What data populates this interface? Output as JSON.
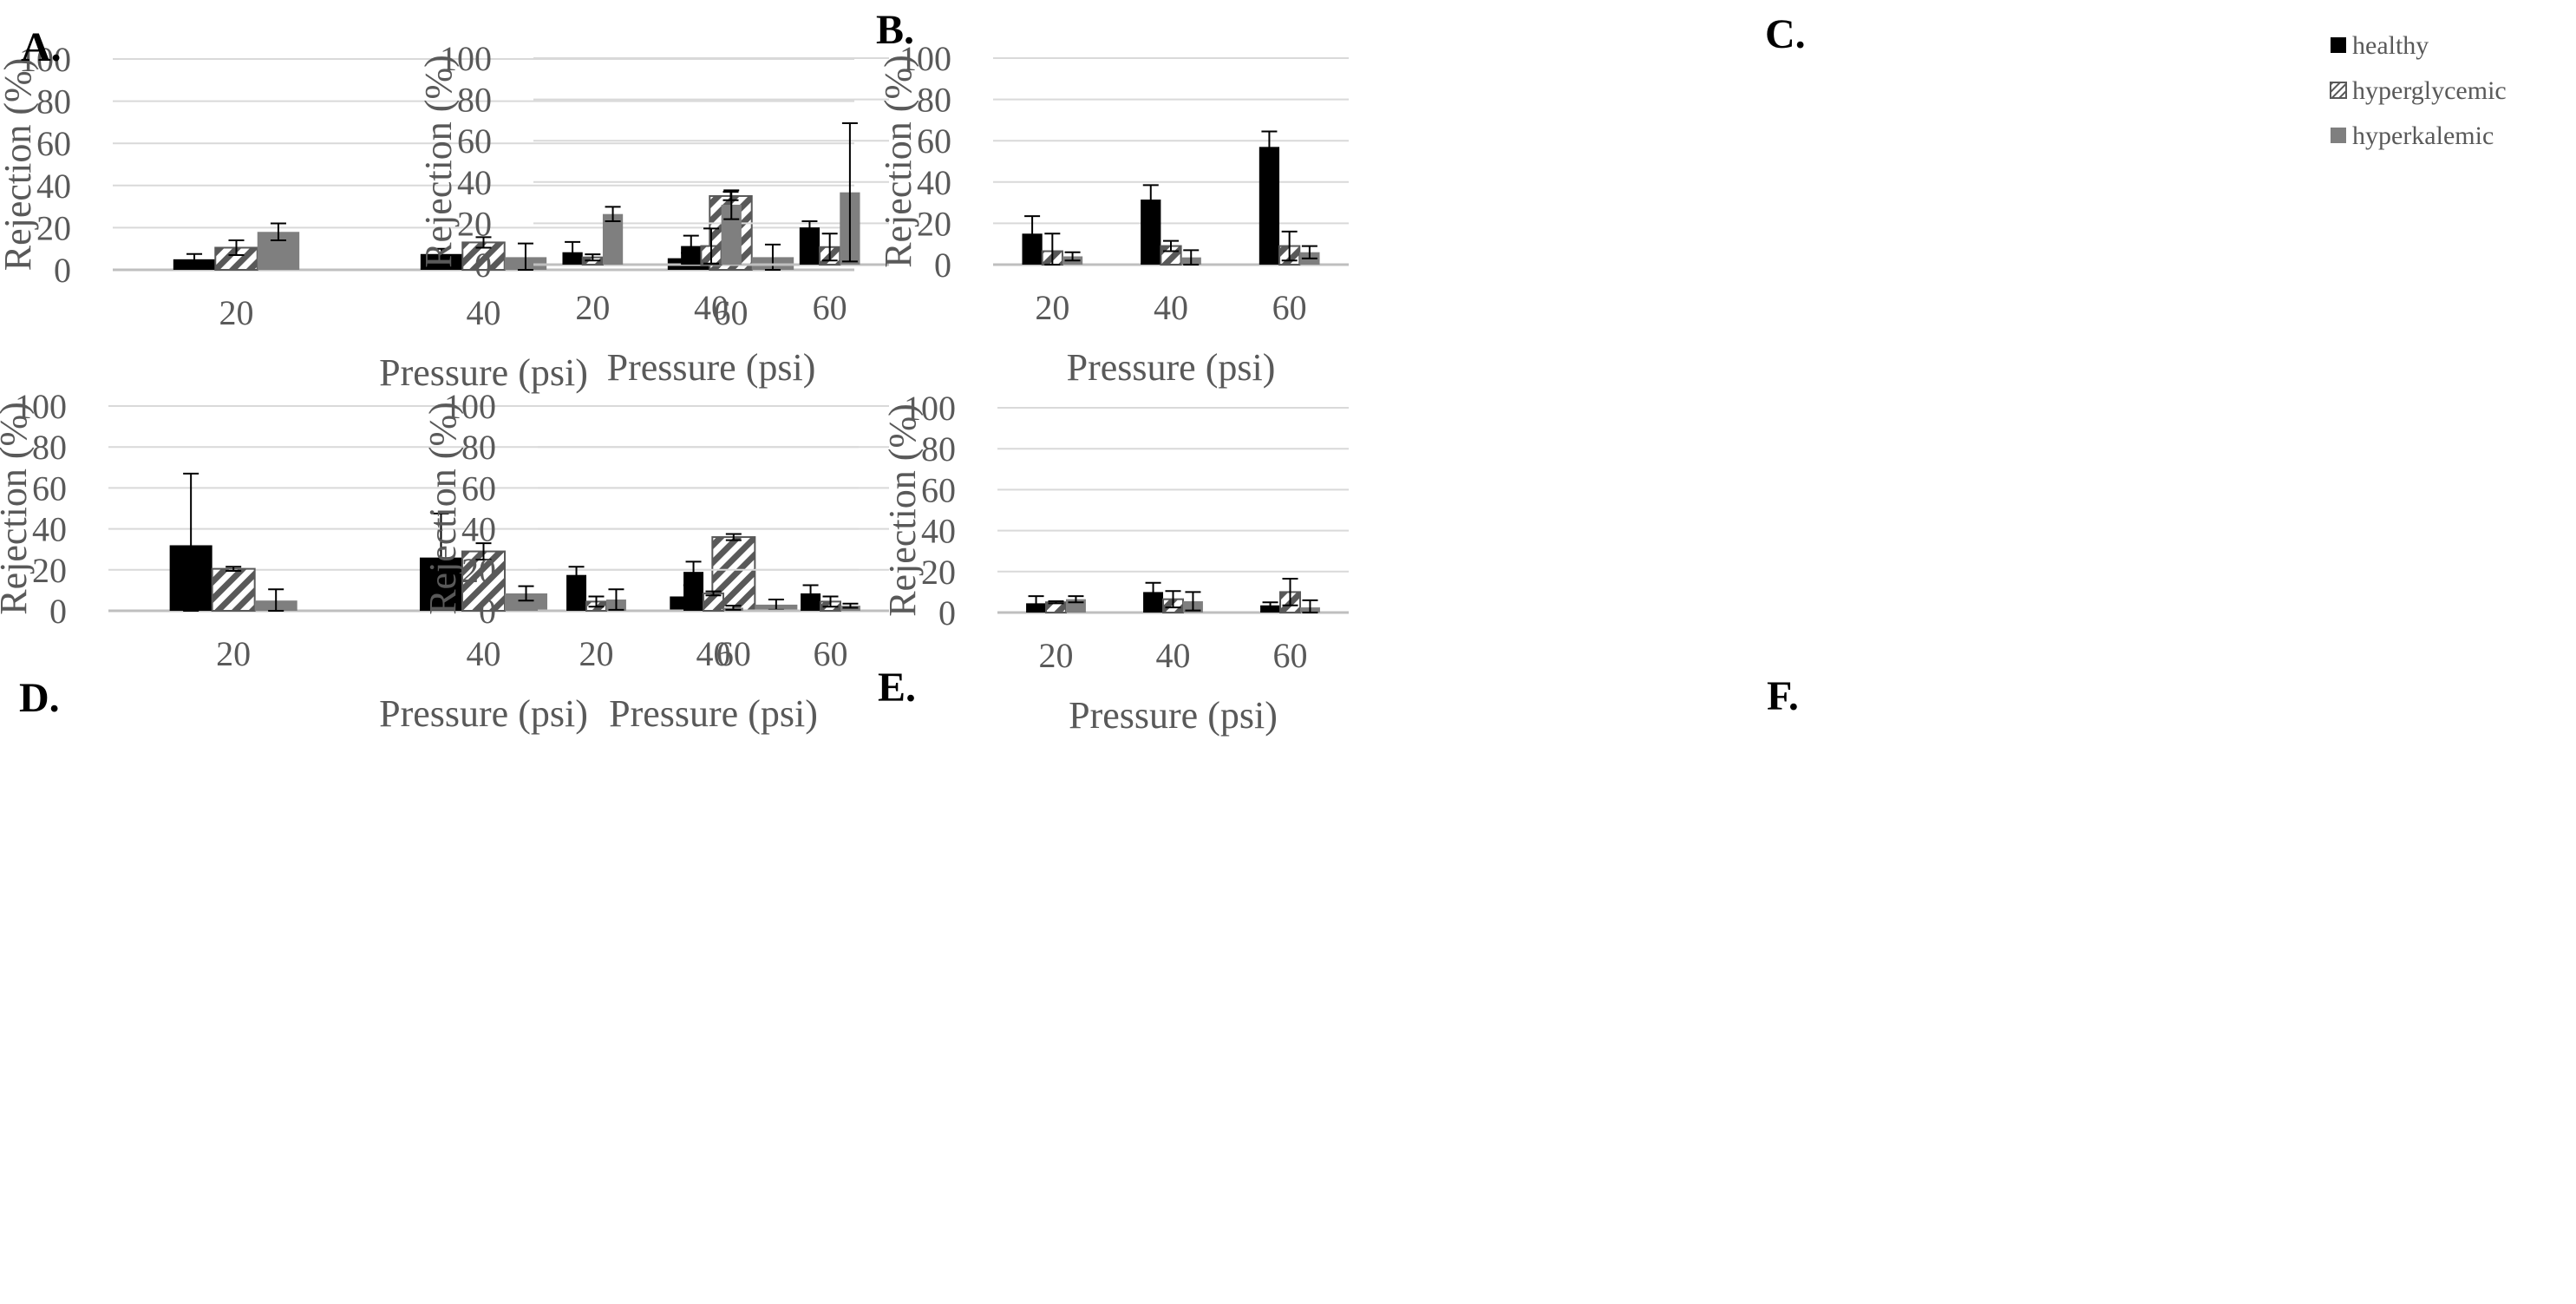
{
  "colors": {
    "healthy": "#000000",
    "hyperglycemic_stroke": "#595959",
    "hyperkalemic": "#7f7f7f",
    "gridline": "#d9d9d9",
    "axis": "#bfbfbf",
    "text": "#595959"
  },
  "legend": [
    "healthy",
    "hyperglycemic",
    "hyperkalemic"
  ],
  "chart_data": [
    {
      "panel": "A.",
      "type": "bar",
      "categories": [
        "20",
        "40",
        "60"
      ],
      "xlabel": "Pressure (psi)",
      "ylabel": "Rejection (%)",
      "ylim": [
        0,
        100
      ],
      "yticks": [
        "0",
        "20",
        "40",
        "60",
        "80",
        "100"
      ],
      "grid": true,
      "series": [
        {
          "name": "healthy",
          "values": [
            5,
            7.5,
            5.5
          ],
          "errors": [
            2.5,
            2.5,
            2.5
          ]
        },
        {
          "name": "hyperglycemic",
          "values": [
            10.5,
            13,
            35
          ],
          "errors": [
            3.5,
            2.5,
            2
          ]
        },
        {
          "name": "hyperkalemic",
          "values": [
            18,
            6,
            6
          ],
          "errors": [
            4,
            6.5,
            6
          ]
        }
      ]
    },
    {
      "panel": "B.",
      "type": "bar",
      "categories": [
        "20",
        "40",
        "60"
      ],
      "xlabel": "Pressure (psi)",
      "ylabel": "Rejection (%)",
      "ylim": [
        0,
        100
      ],
      "yticks": [
        "0",
        "20",
        "40",
        "60",
        "80",
        "100"
      ],
      "grid": true,
      "series": [
        {
          "name": "healthy",
          "values": [
            6,
            9,
            18
          ],
          "errors": [
            5,
            5,
            3
          ]
        },
        {
          "name": "hyperglycemic",
          "values": [
            3.5,
            9,
            8.5
          ],
          "errors": [
            1.5,
            8.5,
            6.5
          ]
        },
        {
          "name": "hyperkalemic",
          "values": [
            24.5,
            29,
            35
          ],
          "errors": [
            3.5,
            7,
            33.5
          ]
        }
      ]
    },
    {
      "panel": "C.",
      "type": "bar",
      "categories": [
        "20",
        "40",
        "60"
      ],
      "xlabel": "Pressure (psi)",
      "ylabel": "Rejection (%)",
      "ylim": [
        0,
        100
      ],
      "yticks": [
        "0",
        "20",
        "40",
        "60",
        "80",
        "100"
      ],
      "grid": true,
      "legend_position": "top-right",
      "series": [
        {
          "name": "healthy",
          "values": [
            15,
            31.5,
            57
          ],
          "errors": [
            8.5,
            7,
            7.5
          ]
        },
        {
          "name": "hyperglycemic",
          "values": [
            6.5,
            9,
            9
          ],
          "errors": [
            8.5,
            2.5,
            7
          ]
        },
        {
          "name": "hyperkalemic",
          "values": [
            4,
            3.5,
            6
          ],
          "errors": [
            2,
            3.5,
            3
          ]
        }
      ]
    },
    {
      "panel": "D.",
      "type": "bar",
      "categories": [
        "20",
        "40",
        "60"
      ],
      "xlabel": "Pressure (psi)",
      "ylabel": "Rejection (%)",
      "ylim": [
        0,
        100
      ],
      "yticks": [
        "0",
        "20",
        "40",
        "60",
        "80",
        "100"
      ],
      "grid": true,
      "series": [
        {
          "name": "healthy",
          "values": [
            32,
            26,
            7
          ],
          "errors": [
            35,
            21.5,
            5.5
          ]
        },
        {
          "name": "hyperglycemic",
          "values": [
            20.5,
            29,
            36
          ],
          "errors": [
            1,
            4,
            1.5
          ]
        },
        {
          "name": "hyperkalemic",
          "values": [
            5,
            8.5,
            3
          ],
          "errors": [
            5.5,
            3.5,
            2.5
          ]
        }
      ]
    },
    {
      "panel": "E.",
      "type": "bar",
      "categories": [
        "20",
        "40",
        "60"
      ],
      "xlabel": "Pressure (psi)",
      "ylabel": "Rejection (%)",
      "ylim": [
        0,
        100
      ],
      "yticks": [
        "0",
        "20",
        "40",
        "60",
        "80",
        "100"
      ],
      "grid": true,
      "series": [
        {
          "name": "healthy",
          "values": [
            17.5,
            19,
            8.5
          ],
          "errors": [
            4,
            5,
            4
          ]
        },
        {
          "name": "hyperglycemic",
          "values": [
            4.5,
            8.5,
            4.5
          ],
          "errors": [
            2.5,
            1,
            2.5
          ]
        },
        {
          "name": "hyperkalemic",
          "values": [
            5.5,
            1.5,
            2.5
          ],
          "errors": [
            5,
            1,
            1
          ]
        }
      ]
    },
    {
      "panel": "F.",
      "type": "bar",
      "categories": [
        "20",
        "40",
        "60"
      ],
      "xlabel": "Pressure (psi)",
      "ylabel": "Rejection (%)",
      "ylim": [
        0,
        100
      ],
      "yticks": [
        "0",
        "20",
        "40",
        "60",
        "80",
        "100"
      ],
      "grid": true,
      "series": [
        {
          "name": "healthy",
          "values": [
            4.5,
            10,
            3.5
          ],
          "errors": [
            3.5,
            4.5,
            1.5
          ]
        },
        {
          "name": "hyperglycemic",
          "values": [
            5,
            6.5,
            10
          ],
          "errors": [
            0.5,
            4,
            6.5
          ]
        },
        {
          "name": "hyperkalemic",
          "values": [
            6.5,
            5.5,
            2.5
          ],
          "errors": [
            1.5,
            4.5,
            3.5
          ]
        }
      ]
    }
  ]
}
